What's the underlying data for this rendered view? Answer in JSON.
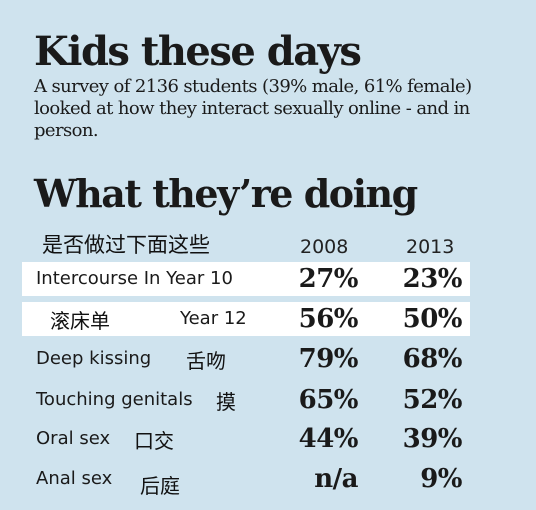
{
  "headline": "Kids these days",
  "intro": "A survey of 2136 students (39% male, 61% female) looked at how they interact sexually online - and in person.",
  "section_title": "What they’re doing",
  "annotation_cn": "是否做过下面这些",
  "chart_data": {
    "type": "table",
    "columns": [
      "2008",
      "2013"
    ],
    "rows": [
      {
        "label": "Intercourse In Year 10",
        "annotation": "",
        "values": [
          "27%",
          "23%"
        ],
        "highlight": true
      },
      {
        "label": "Year 12",
        "annotation": "滚床单",
        "values": [
          "56%",
          "50%"
        ],
        "highlight": true
      },
      {
        "label": "Deep kissing",
        "annotation": "舌吻",
        "values": [
          "79%",
          "68%"
        ],
        "highlight": false
      },
      {
        "label": "Touching genitals",
        "annotation": "摸",
        "values": [
          "65%",
          "52%"
        ],
        "highlight": false
      },
      {
        "label": "Oral sex",
        "annotation": "口交",
        "values": [
          "44%",
          "39%"
        ],
        "highlight": false
      },
      {
        "label": "Anal sex",
        "annotation": "后庭",
        "values": [
          "n/a",
          "9%"
        ],
        "highlight": false
      }
    ]
  },
  "colors": {
    "background": "#cfe3ee",
    "highlight_row": "#ffffff",
    "text": "#1a1a1a"
  }
}
